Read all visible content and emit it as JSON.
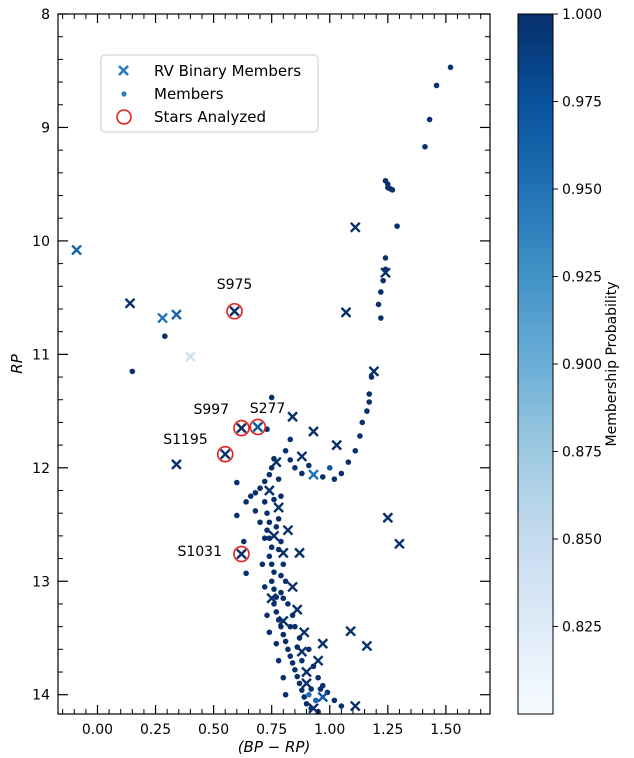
{
  "chart_data": {
    "type": "scatter",
    "xlabel": "(BP − RP)",
    "ylabel": "RP",
    "xlim": [
      -0.17,
      1.69
    ],
    "ylim": [
      14.17,
      8.0
    ],
    "y_inverted": true,
    "x_ticks": [
      "0.00",
      "0.25",
      "0.50",
      "0.75",
      "1.00",
      "1.25",
      "1.50"
    ],
    "x_tick_values": [
      0,
      0.25,
      0.5,
      0.75,
      1.0,
      1.25,
      1.5
    ],
    "y_ticks": [
      "8",
      "9",
      "10",
      "11",
      "12",
      "13",
      "14"
    ],
    "y_tick_values": [
      8,
      9,
      10,
      11,
      12,
      13,
      14
    ],
    "legend": {
      "placement": "upper-left",
      "entries": [
        {
          "label": "RV Binary Members",
          "marker": "x",
          "color": "#2b7bba"
        },
        {
          "label": "Members",
          "marker": "dot",
          "color": "#2b7bba"
        },
        {
          "label": "Stars Analyzed",
          "marker": "circle",
          "color": "#e4201c"
        }
      ]
    },
    "colorbar": {
      "label": "Membership Probability",
      "min": 0.8,
      "max": 1.0,
      "ticks": [
        "1.000",
        "0.975",
        "0.950",
        "0.925",
        "0.900",
        "0.875",
        "0.850",
        "0.825"
      ],
      "tick_values": [
        1.0,
        0.975,
        0.95,
        0.925,
        0.9,
        0.875,
        0.85,
        0.825
      ],
      "colormap": "Blues"
    },
    "binaries": [
      {
        "x": -0.09,
        "y": 10.08,
        "p": 0.96
      },
      {
        "x": 0.14,
        "y": 10.55,
        "p": 1.0
      },
      {
        "x": 0.28,
        "y": 10.68,
        "p": 0.95
      },
      {
        "x": 0.34,
        "y": 10.65,
        "p": 0.96
      },
      {
        "x": 0.4,
        "y": 11.02,
        "p": 0.84
      },
      {
        "x": 0.59,
        "y": 10.62,
        "p": 1.0
      },
      {
        "x": 1.07,
        "y": 10.63,
        "p": 1.0
      },
      {
        "x": 1.11,
        "y": 9.88,
        "p": 1.0
      },
      {
        "x": 1.24,
        "y": 10.28,
        "p": 1.0
      },
      {
        "x": 1.19,
        "y": 11.15,
        "p": 1.0
      },
      {
        "x": 0.84,
        "y": 11.55,
        "p": 1.0
      },
      {
        "x": 0.93,
        "y": 11.68,
        "p": 1.0
      },
      {
        "x": 1.03,
        "y": 11.8,
        "p": 1.0
      },
      {
        "x": 0.88,
        "y": 11.9,
        "p": 1.0
      },
      {
        "x": 0.93,
        "y": 12.06,
        "p": 0.95
      },
      {
        "x": 0.34,
        "y": 11.97,
        "p": 1.0
      },
      {
        "x": 0.62,
        "y": 11.65,
        "p": 1.0
      },
      {
        "x": 0.69,
        "y": 11.64,
        "p": 0.97
      },
      {
        "x": 0.55,
        "y": 11.88,
        "p": 1.0
      },
      {
        "x": 0.62,
        "y": 12.76,
        "p": 1.0
      },
      {
        "x": 1.25,
        "y": 12.44,
        "p": 1.0
      },
      {
        "x": 1.3,
        "y": 12.67,
        "p": 1.0
      },
      {
        "x": 0.77,
        "y": 11.95,
        "p": 1.0
      },
      {
        "x": 0.78,
        "y": 12.35,
        "p": 1.0
      },
      {
        "x": 0.76,
        "y": 12.6,
        "p": 1.0
      },
      {
        "x": 0.8,
        "y": 12.75,
        "p": 1.0
      },
      {
        "x": 0.87,
        "y": 12.75,
        "p": 1.0
      },
      {
        "x": 0.84,
        "y": 13.05,
        "p": 1.0
      },
      {
        "x": 0.86,
        "y": 13.25,
        "p": 1.0
      },
      {
        "x": 0.89,
        "y": 13.45,
        "p": 1.0
      },
      {
        "x": 0.97,
        "y": 13.55,
        "p": 1.0
      },
      {
        "x": 1.09,
        "y": 13.44,
        "p": 1.0
      },
      {
        "x": 1.16,
        "y": 13.57,
        "p": 1.0
      },
      {
        "x": 0.88,
        "y": 13.62,
        "p": 1.0
      },
      {
        "x": 0.95,
        "y": 13.7,
        "p": 1.0
      },
      {
        "x": 0.9,
        "y": 13.9,
        "p": 1.0
      },
      {
        "x": 0.97,
        "y": 14.02,
        "p": 0.97
      },
      {
        "x": 1.11,
        "y": 14.1,
        "p": 1.0
      },
      {
        "x": 0.74,
        "y": 12.2,
        "p": 1.0
      },
      {
        "x": 0.82,
        "y": 12.55,
        "p": 1.0
      },
      {
        "x": 0.75,
        "y": 13.15,
        "p": 1.0
      },
      {
        "x": 0.9,
        "y": 13.8,
        "p": 1.0
      },
      {
        "x": 0.8,
        "y": 13.35,
        "p": 1.0
      },
      {
        "x": 0.93,
        "y": 14.12,
        "p": 1.0
      }
    ],
    "members": [
      {
        "x": 1.52,
        "y": 8.47,
        "p": 1.0
      },
      {
        "x": 1.46,
        "y": 8.63,
        "p": 1.0
      },
      {
        "x": 1.43,
        "y": 8.93,
        "p": 1.0
      },
      {
        "x": 1.41,
        "y": 9.17,
        "p": 1.0
      },
      {
        "x": 1.24,
        "y": 9.47,
        "p": 1.0
      },
      {
        "x": 1.25,
        "y": 9.5,
        "p": 1.0
      },
      {
        "x": 1.26,
        "y": 9.54,
        "p": 1.0
      },
      {
        "x": 1.25,
        "y": 9.53,
        "p": 1.0
      },
      {
        "x": 1.27,
        "y": 9.55,
        "p": 1.0
      },
      {
        "x": 1.29,
        "y": 9.87,
        "p": 1.0
      },
      {
        "x": 1.24,
        "y": 10.15,
        "p": 1.0
      },
      {
        "x": 1.24,
        "y": 10.25,
        "p": 1.0
      },
      {
        "x": 1.23,
        "y": 10.35,
        "p": 1.0
      },
      {
        "x": 1.22,
        "y": 10.45,
        "p": 1.0
      },
      {
        "x": 1.21,
        "y": 10.56,
        "p": 1.0
      },
      {
        "x": 1.22,
        "y": 10.68,
        "p": 1.0
      },
      {
        "x": 0.15,
        "y": 11.15,
        "p": 1.0
      },
      {
        "x": 0.29,
        "y": 10.84,
        "p": 1.0
      },
      {
        "x": 1.18,
        "y": 11.2,
        "p": 1.0
      },
      {
        "x": 1.17,
        "y": 11.35,
        "p": 1.0
      },
      {
        "x": 1.17,
        "y": 11.42,
        "p": 1.0
      },
      {
        "x": 1.16,
        "y": 11.5,
        "p": 1.0
      },
      {
        "x": 1.14,
        "y": 11.6,
        "p": 1.0
      },
      {
        "x": 1.13,
        "y": 11.72,
        "p": 1.0
      },
      {
        "x": 1.11,
        "y": 11.85,
        "p": 1.0
      },
      {
        "x": 1.08,
        "y": 11.95,
        "p": 1.0
      },
      {
        "x": 1.05,
        "y": 12.05,
        "p": 1.0
      },
      {
        "x": 1.02,
        "y": 12.1,
        "p": 1.0
      },
      {
        "x": 1.0,
        "y": 12.0,
        "p": 0.97
      },
      {
        "x": 0.97,
        "y": 12.08,
        "p": 1.0
      },
      {
        "x": 0.75,
        "y": 11.38,
        "p": 1.0
      },
      {
        "x": 0.73,
        "y": 11.66,
        "p": 1.0
      },
      {
        "x": 0.6,
        "y": 12.13,
        "p": 1.0
      },
      {
        "x": 0.6,
        "y": 12.42,
        "p": 1.0
      },
      {
        "x": 0.63,
        "y": 12.65,
        "p": 1.0
      },
      {
        "x": 0.64,
        "y": 12.93,
        "p": 1.0
      },
      {
        "x": 0.83,
        "y": 11.75,
        "p": 1.0
      },
      {
        "x": 0.81,
        "y": 11.85,
        "p": 1.0
      },
      {
        "x": 0.83,
        "y": 11.93,
        "p": 1.0
      },
      {
        "x": 0.85,
        "y": 12.0,
        "p": 1.0
      },
      {
        "x": 0.88,
        "y": 12.05,
        "p": 1.0
      },
      {
        "x": 0.91,
        "y": 11.98,
        "p": 1.0
      },
      {
        "x": 0.76,
        "y": 11.92,
        "p": 1.0
      },
      {
        "x": 0.75,
        "y": 12.0,
        "p": 1.0
      },
      {
        "x": 0.74,
        "y": 12.06,
        "p": 1.0
      },
      {
        "x": 0.72,
        "y": 12.12,
        "p": 1.0
      },
      {
        "x": 0.7,
        "y": 12.18,
        "p": 1.0
      },
      {
        "x": 0.68,
        "y": 12.22,
        "p": 1.0
      },
      {
        "x": 0.66,
        "y": 12.25,
        "p": 1.0
      },
      {
        "x": 0.64,
        "y": 12.3,
        "p": 1.0
      },
      {
        "x": 0.72,
        "y": 12.3,
        "p": 1.0
      },
      {
        "x": 0.73,
        "y": 12.4,
        "p": 1.0
      },
      {
        "x": 0.74,
        "y": 12.48,
        "p": 1.0
      },
      {
        "x": 0.73,
        "y": 12.55,
        "p": 1.0
      },
      {
        "x": 0.74,
        "y": 12.62,
        "p": 1.0
      },
      {
        "x": 0.75,
        "y": 12.7,
        "p": 1.0
      },
      {
        "x": 0.74,
        "y": 12.78,
        "p": 1.0
      },
      {
        "x": 0.75,
        "y": 12.85,
        "p": 1.0
      },
      {
        "x": 0.76,
        "y": 12.92,
        "p": 1.0
      },
      {
        "x": 0.75,
        "y": 13.0,
        "p": 1.0
      },
      {
        "x": 0.76,
        "y": 13.07,
        "p": 1.0
      },
      {
        "x": 0.77,
        "y": 13.14,
        "p": 1.0
      },
      {
        "x": 0.76,
        "y": 13.2,
        "p": 1.0
      },
      {
        "x": 0.77,
        "y": 13.27,
        "p": 1.0
      },
      {
        "x": 0.78,
        "y": 13.34,
        "p": 1.0
      },
      {
        "x": 0.79,
        "y": 13.4,
        "p": 1.0
      },
      {
        "x": 0.8,
        "y": 13.47,
        "p": 1.0
      },
      {
        "x": 0.81,
        "y": 13.53,
        "p": 1.0
      },
      {
        "x": 0.82,
        "y": 13.6,
        "p": 1.0
      },
      {
        "x": 0.83,
        "y": 13.66,
        "p": 1.0
      },
      {
        "x": 0.84,
        "y": 13.72,
        "p": 1.0
      },
      {
        "x": 0.85,
        "y": 13.78,
        "p": 1.0
      },
      {
        "x": 0.86,
        "y": 13.84,
        "p": 1.0
      },
      {
        "x": 0.87,
        "y": 13.9,
        "p": 1.0
      },
      {
        "x": 0.88,
        "y": 13.96,
        "p": 1.0
      },
      {
        "x": 0.89,
        "y": 14.02,
        "p": 1.0
      },
      {
        "x": 0.9,
        "y": 14.08,
        "p": 1.0
      },
      {
        "x": 0.92,
        "y": 14.12,
        "p": 1.0
      },
      {
        "x": 0.78,
        "y": 12.1,
        "p": 1.0
      },
      {
        "x": 0.79,
        "y": 12.25,
        "p": 1.0
      },
      {
        "x": 0.78,
        "y": 12.45,
        "p": 1.0
      },
      {
        "x": 0.79,
        "y": 12.65,
        "p": 1.0
      },
      {
        "x": 0.8,
        "y": 12.85,
        "p": 1.0
      },
      {
        "x": 0.81,
        "y": 13.0,
        "p": 1.0
      },
      {
        "x": 0.79,
        "y": 13.1,
        "p": 1.0
      },
      {
        "x": 0.82,
        "y": 13.2,
        "p": 1.0
      },
      {
        "x": 0.84,
        "y": 13.3,
        "p": 1.0
      },
      {
        "x": 0.85,
        "y": 13.4,
        "p": 1.0
      },
      {
        "x": 0.87,
        "y": 13.5,
        "p": 1.0
      },
      {
        "x": 0.91,
        "y": 13.6,
        "p": 1.0
      },
      {
        "x": 0.93,
        "y": 13.75,
        "p": 1.0
      },
      {
        "x": 0.95,
        "y": 13.85,
        "p": 1.0
      },
      {
        "x": 0.97,
        "y": 13.92,
        "p": 1.0
      },
      {
        "x": 0.99,
        "y": 13.98,
        "p": 1.0
      },
      {
        "x": 1.02,
        "y": 14.05,
        "p": 1.0
      },
      {
        "x": 1.05,
        "y": 14.1,
        "p": 1.0
      },
      {
        "x": 0.94,
        "y": 14.05,
        "p": 0.96
      },
      {
        "x": 0.91,
        "y": 14.0,
        "p": 0.95
      },
      {
        "x": 0.96,
        "y": 13.95,
        "p": 1.0
      },
      {
        "x": 0.72,
        "y": 12.62,
        "p": 1.0
      },
      {
        "x": 0.71,
        "y": 12.85,
        "p": 1.0
      },
      {
        "x": 0.72,
        "y": 13.05,
        "p": 1.0
      },
      {
        "x": 0.73,
        "y": 13.3,
        "p": 1.0
      },
      {
        "x": 0.74,
        "y": 13.45,
        "p": 1.0
      },
      {
        "x": 0.77,
        "y": 13.55,
        "p": 1.0
      },
      {
        "x": 0.78,
        "y": 13.7,
        "p": 1.0
      },
      {
        "x": 0.8,
        "y": 13.85,
        "p": 1.0
      },
      {
        "x": 0.81,
        "y": 14.0,
        "p": 1.0
      },
      {
        "x": 0.7,
        "y": 12.48,
        "p": 1.0
      },
      {
        "x": 0.68,
        "y": 12.38,
        "p": 1.0
      },
      {
        "x": 0.76,
        "y": 12.28,
        "p": 1.0
      },
      {
        "x": 0.77,
        "y": 12.52,
        "p": 1.0
      },
      {
        "x": 0.78,
        "y": 12.72,
        "p": 1.0
      },
      {
        "x": 0.79,
        "y": 12.95,
        "p": 1.0
      },
      {
        "x": 0.8,
        "y": 13.15,
        "p": 1.0
      },
      {
        "x": 0.83,
        "y": 13.4,
        "p": 1.0
      },
      {
        "x": 0.86,
        "y": 13.58,
        "p": 1.0
      },
      {
        "x": 0.88,
        "y": 13.7,
        "p": 1.0
      },
      {
        "x": 0.92,
        "y": 13.95,
        "p": 1.0
      },
      {
        "x": 0.95,
        "y": 14.15,
        "p": 1.0
      }
    ],
    "annotations": [
      {
        "text": "S975",
        "x": 0.59,
        "y": 10.62,
        "dx": 0,
        "dy": -22
      },
      {
        "text": "S997",
        "x": 0.62,
        "y": 11.65,
        "dx": -48,
        "dy": -14
      },
      {
        "text": "S277",
        "x": 0.69,
        "y": 11.64,
        "dx": -8,
        "dy": -14
      },
      {
        "text": "S1195",
        "x": 0.55,
        "y": 11.88,
        "dx": -62,
        "dy": -10
      },
      {
        "text": "S1031",
        "x": 0.62,
        "y": 12.76,
        "dx": -64,
        "dy": 2
      }
    ],
    "analyzed": [
      {
        "x": 0.59,
        "y": 10.62
      },
      {
        "x": 0.62,
        "y": 11.65
      },
      {
        "x": 0.69,
        "y": 11.64
      },
      {
        "x": 0.55,
        "y": 11.88
      },
      {
        "x": 0.62,
        "y": 12.76
      }
    ]
  }
}
